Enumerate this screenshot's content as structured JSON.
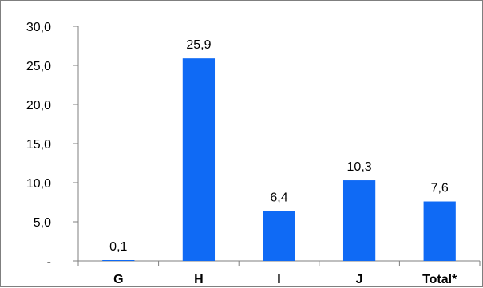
{
  "chart_data": {
    "type": "bar",
    "categories": [
      "G",
      "H",
      "I",
      "J",
      "Total*"
    ],
    "values": [
      0.1,
      25.9,
      6.4,
      10.3,
      7.6
    ],
    "data_labels": [
      "0,1",
      "25,9",
      "6,4",
      "10,3",
      "7,6"
    ],
    "y_ticks": [
      0,
      5,
      10,
      15,
      20,
      25,
      30
    ],
    "y_tick_labels": [
      "-",
      "5,0",
      "10,0",
      "15,0",
      "20,0",
      "25,0",
      "30,0"
    ],
    "ylim": [
      0,
      30
    ],
    "grid": false,
    "legend": "none",
    "bar_color": "#0f6af5"
  }
}
